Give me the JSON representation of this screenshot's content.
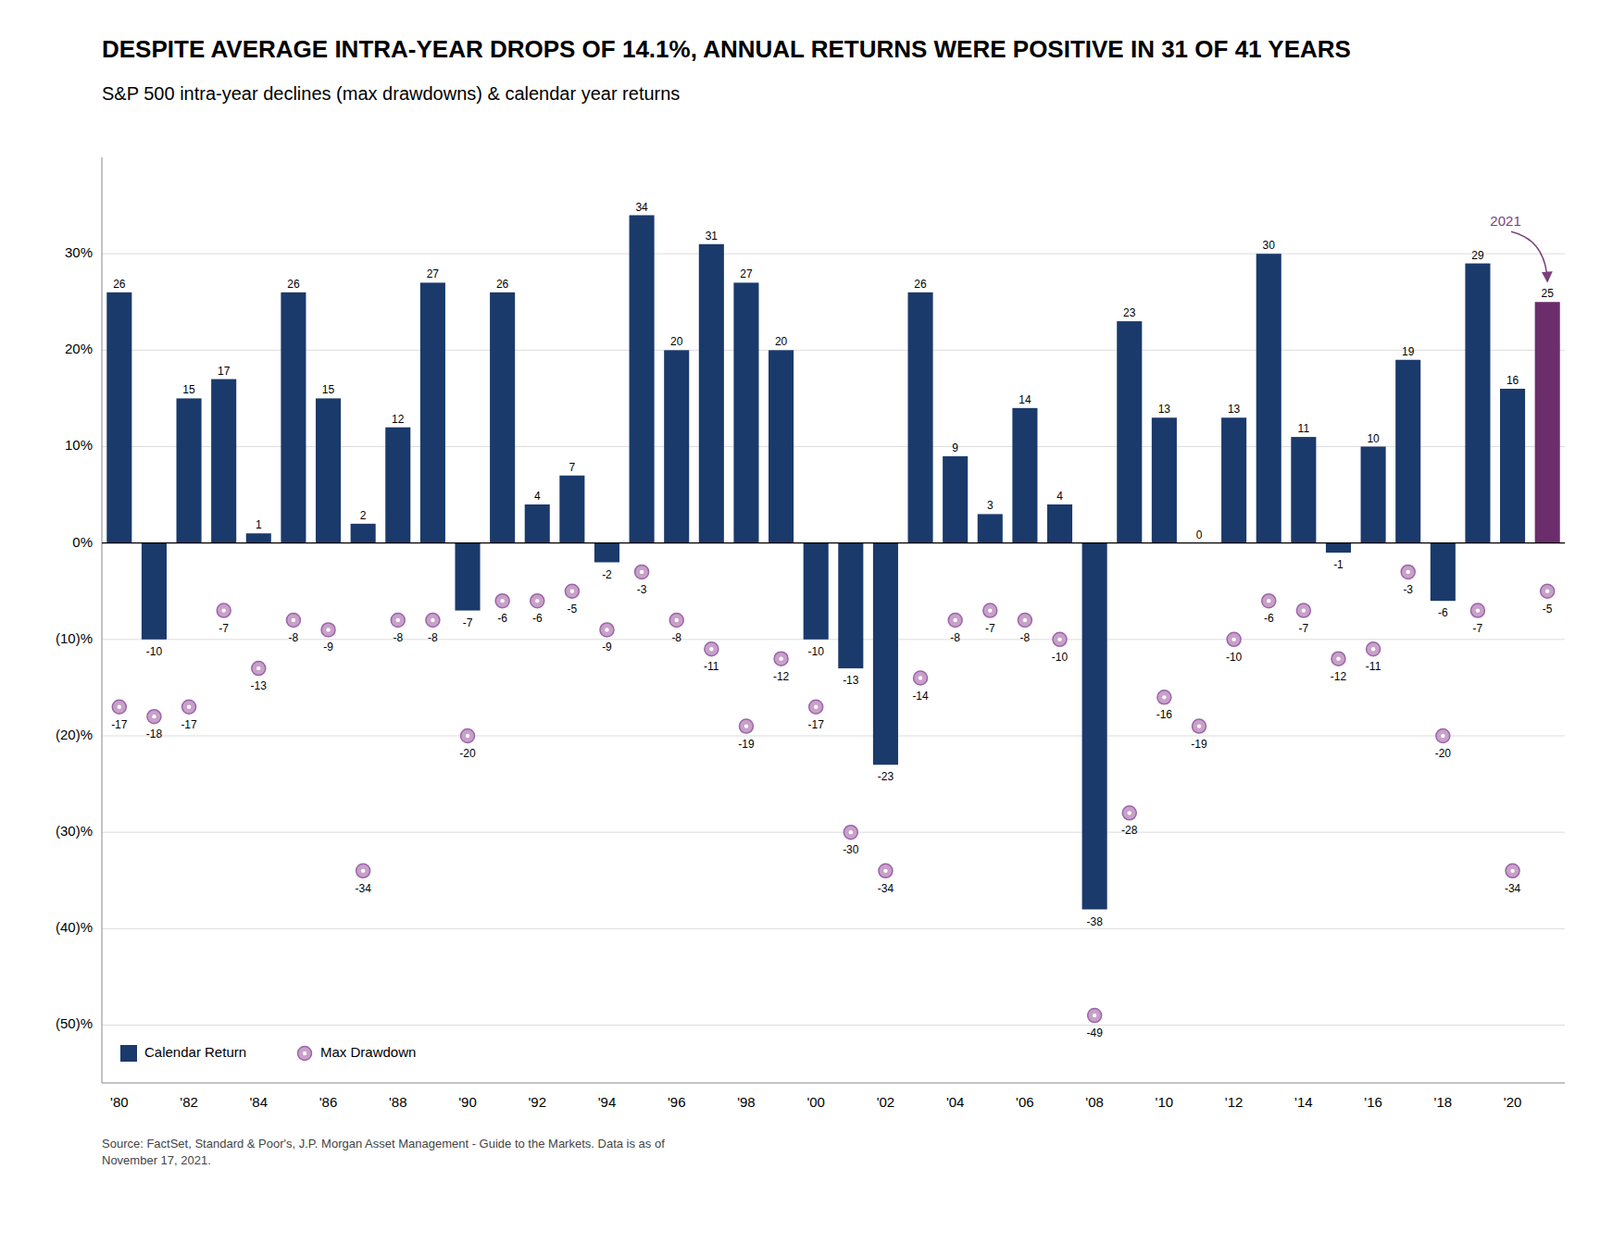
{
  "chart_data": {
    "type": "bar",
    "title": "DESPITE AVERAGE INTRA-YEAR DROPS OF 14.1%, ANNUAL RETURNS WERE POSITIVE IN 31 OF 41 YEARS",
    "subtitle": "S&P 500 intra-year declines (max drawdowns) & calendar year returns",
    "source": "Source: FactSet, Standard & Poor's, J.P. Morgan Asset Management - Guide to the Markets. Data is as of\nNovember 17, 2021.",
    "categories": [
      "'80",
      null,
      "'82",
      null,
      "'84",
      null,
      "'86",
      null,
      "'88",
      null,
      "'90",
      null,
      "'92",
      null,
      "'94",
      null,
      "'96",
      null,
      "'98",
      null,
      "'00",
      null,
      "'02",
      null,
      "'04",
      null,
      "'06",
      null,
      "'08",
      null,
      "'10",
      null,
      "'12",
      null,
      "'14",
      null,
      "'16",
      null,
      "'18",
      null,
      "'20",
      null
    ],
    "series": [
      {
        "name": "Calendar Return",
        "type": "bar",
        "color": "#1a3a6b",
        "colors": [
          "#1a3a6b",
          "#1a3a6b",
          "#1a3a6b",
          "#1a3a6b",
          "#1a3a6b",
          "#1a3a6b",
          "#1a3a6b",
          "#1a3a6b",
          "#1a3a6b",
          "#1a3a6b",
          "#1a3a6b",
          "#1a3a6b",
          "#1a3a6b",
          "#1a3a6b",
          "#1a3a6b",
          "#1a3a6b",
          "#1a3a6b",
          "#1a3a6b",
          "#1a3a6b",
          "#1a3a6b",
          "#1a3a6b",
          "#1a3a6b",
          "#1a3a6b",
          "#1a3a6b",
          "#1a3a6b",
          "#1a3a6b",
          "#1a3a6b",
          "#1a3a6b",
          "#1a3a6b",
          "#1a3a6b",
          "#1a3a6b",
          "#1a3a6b",
          "#1a3a6b",
          "#1a3a6b",
          "#1a3a6b",
          "#1a3a6b",
          "#1a3a6b",
          "#1a3a6b",
          "#1a3a6b",
          "#1a3a6b",
          "#1a3a6b",
          "#6b2d6b"
        ],
        "values": [
          26,
          -10,
          15,
          17,
          1,
          26,
          15,
          2,
          12,
          27,
          -7,
          26,
          4,
          7,
          -2,
          34,
          20,
          31,
          27,
          20,
          -10,
          -13,
          -23,
          26,
          9,
          3,
          14,
          4,
          -38,
          23,
          13,
          0,
          13,
          30,
          11,
          -1,
          10,
          19,
          -6,
          29,
          16,
          25
        ]
      },
      {
        "name": "Max Drawdown",
        "type": "scatter",
        "marker": "circle",
        "color": "#c9a0c9",
        "values": [
          -17,
          -18,
          -17,
          -7,
          -13,
          -8,
          -9,
          -34,
          -8,
          -8,
          -20,
          -6,
          -6,
          -5,
          -9,
          -3,
          -8,
          -11,
          -19,
          -12,
          -17,
          -30,
          -34,
          -14,
          -8,
          -7,
          -8,
          -10,
          -49,
          -28,
          -16,
          -19,
          -10,
          -6,
          -7,
          -12,
          -11,
          -3,
          -20,
          -7,
          -34,
          -5
        ]
      }
    ],
    "ylim": [
      -56,
      40
    ],
    "yticks": [
      {
        "value": -50,
        "label": "(50)%"
      },
      {
        "value": -40,
        "label": "(40)%"
      },
      {
        "value": -30,
        "label": "(30)%"
      },
      {
        "value": -20,
        "label": "(20)%"
      },
      {
        "value": -10,
        "label": "(10)%"
      },
      {
        "value": 0,
        "label": "0%"
      },
      {
        "value": 10,
        "label": "10%"
      },
      {
        "value": 20,
        "label": "20%"
      },
      {
        "value": 30,
        "label": "30%"
      }
    ],
    "grid": true,
    "legend": "lower left",
    "data_labels": true,
    "annotations": [
      {
        "text": "2021",
        "index": 41,
        "color": "#7b3f7b"
      }
    ]
  }
}
